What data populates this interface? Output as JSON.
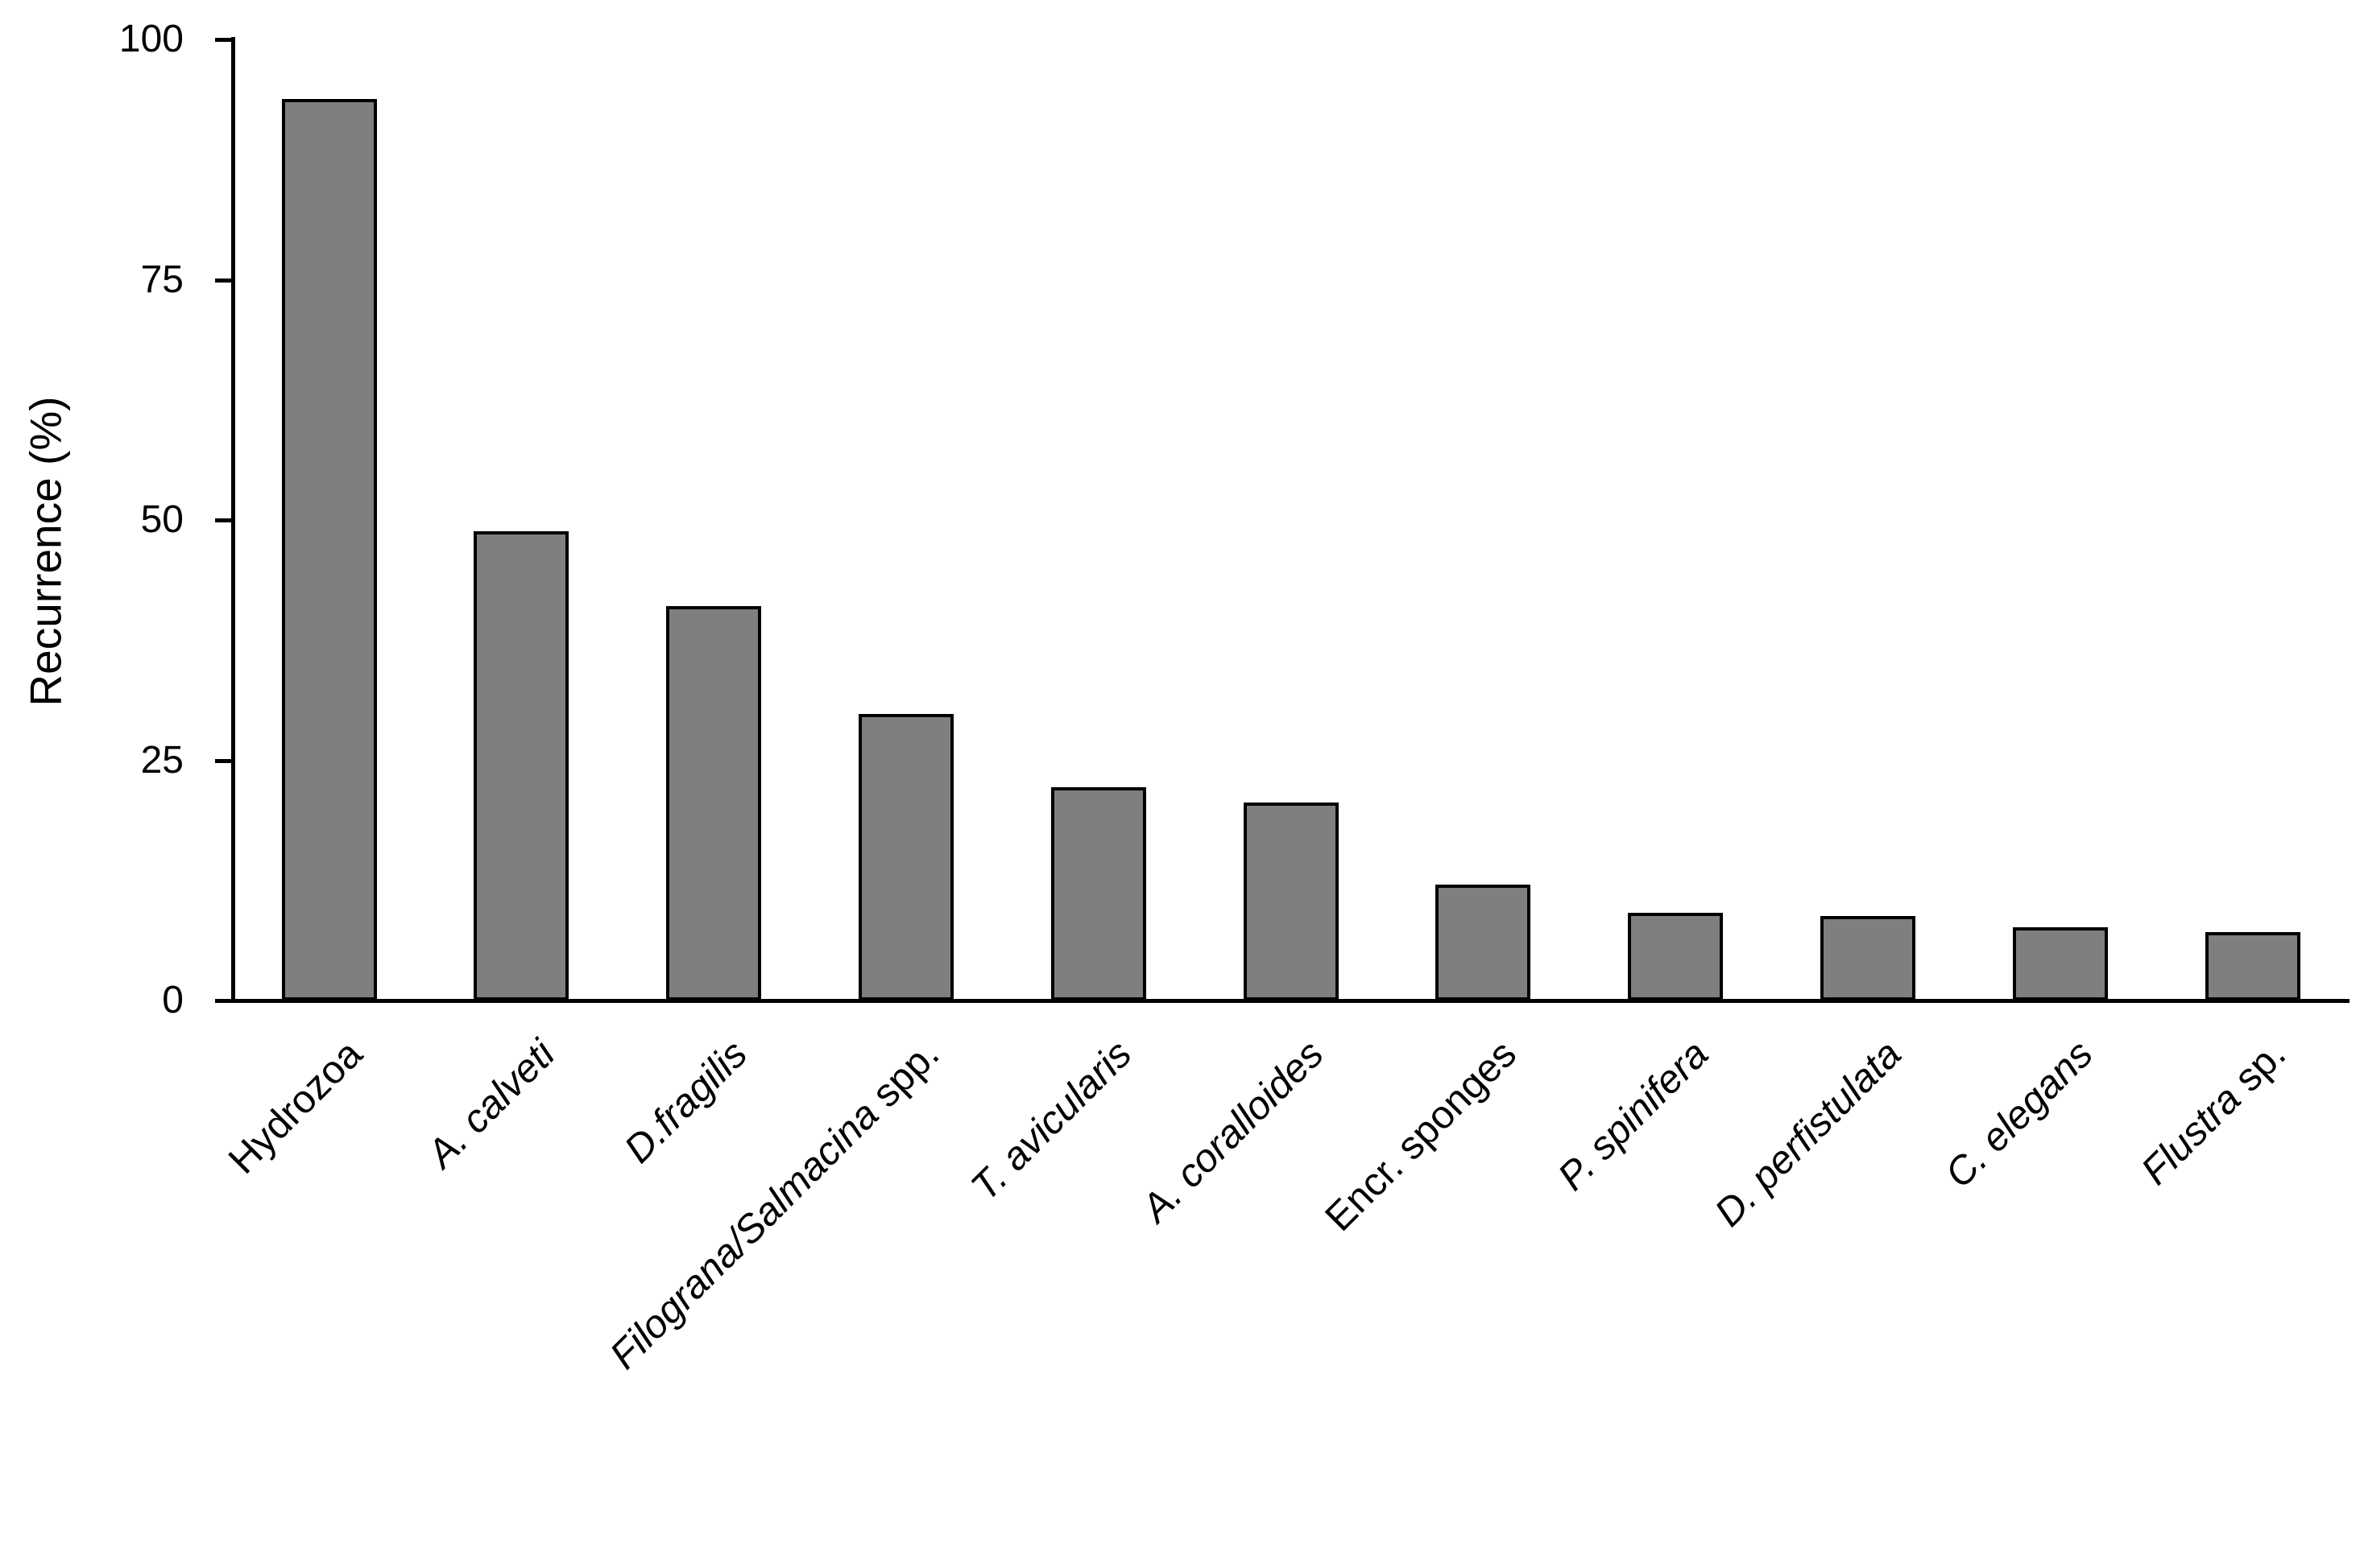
{
  "figure": {
    "background": "#ffffff",
    "title": ""
  },
  "chart_data": {
    "type": "bar",
    "title": "",
    "xlabel": "",
    "ylabel": "Recurrence (%)",
    "ylim": [
      0,
      100
    ],
    "yticks": [
      0,
      25,
      50,
      75,
      100
    ],
    "ytick_labels": [
      "0",
      "25",
      "50",
      "75",
      "100"
    ],
    "grid": false,
    "legend": false,
    "bar_fill": "#7f7f7f",
    "bar_border": "#000000",
    "axis_color": "#000000",
    "categories": [
      "Hydrozoa",
      "A. calveti",
      "D.fragilis",
      "Filograna/Salmacina spp.",
      "T. avicularis",
      "A. coralloides",
      "Encr. sponges",
      "P. spinifera",
      "D. perfistulata",
      "C. elegans",
      "Flustra sp."
    ],
    "category_segments": [
      [
        {
          "text": "Hydrozoa",
          "italic": false
        }
      ],
      [
        {
          "text": "A. calveti",
          "italic": true
        }
      ],
      [
        {
          "text": "D.fragilis",
          "italic": true
        }
      ],
      [
        {
          "text": "Filograna/Salmacina",
          "italic": true
        },
        {
          "text": " spp.",
          "italic": false
        }
      ],
      [
        {
          "text": "T. avicularis",
          "italic": true
        }
      ],
      [
        {
          "text": "A. coralloides",
          "italic": true
        }
      ],
      [
        {
          "text": "Encr. sponges",
          "italic": false
        }
      ],
      [
        {
          "text": "P. spinifera",
          "italic": true
        }
      ],
      [
        {
          "text": "D. perfistulata",
          "italic": true
        }
      ],
      [
        {
          "text": "C. elegans",
          "italic": true
        }
      ],
      [
        {
          "text": "Flustra",
          "italic": true
        },
        {
          "text": " sp.",
          "italic": false
        }
      ]
    ],
    "values": [
      93.8,
      48.8,
      41,
      29.8,
      22.2,
      20.6,
      12.1,
      9.1,
      8.8,
      7.6,
      7.1
    ]
  }
}
